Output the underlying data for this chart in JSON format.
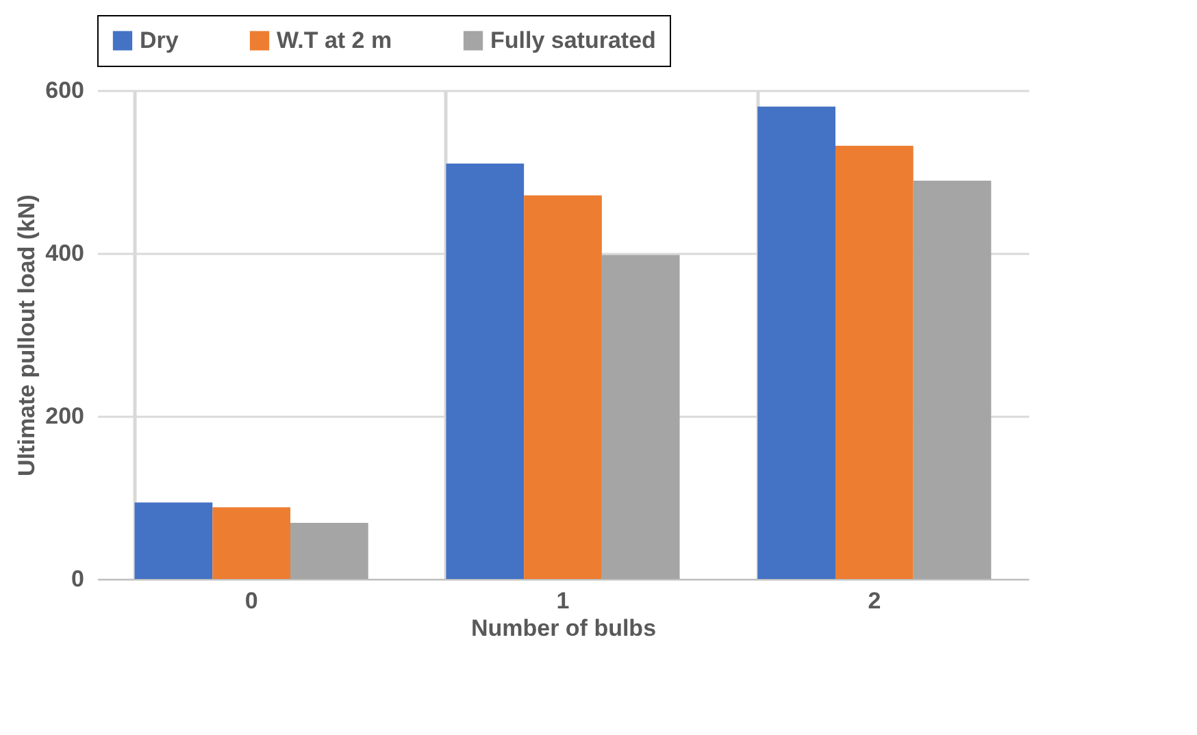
{
  "chart_data": {
    "type": "bar",
    "xlabel": "Number of bulbs",
    "ylabel": "Ultimate pullout load (kN)",
    "categories": [
      "0",
      "1",
      "2"
    ],
    "series": [
      {
        "name": "Dry",
        "color": "#4472c4",
        "values": [
          94,
          510,
          580
        ]
      },
      {
        "name": "W.T at 2 m",
        "color": "#ed7d31",
        "values": [
          88,
          471,
          532
        ]
      },
      {
        "name": "Fully saturated",
        "color": "#a5a5a5",
        "values": [
          69,
          398,
          489
        ]
      }
    ],
    "ylim": [
      0,
      600
    ],
    "yticks": [
      0,
      200,
      400,
      600
    ],
    "grid": true,
    "legend": "top"
  }
}
